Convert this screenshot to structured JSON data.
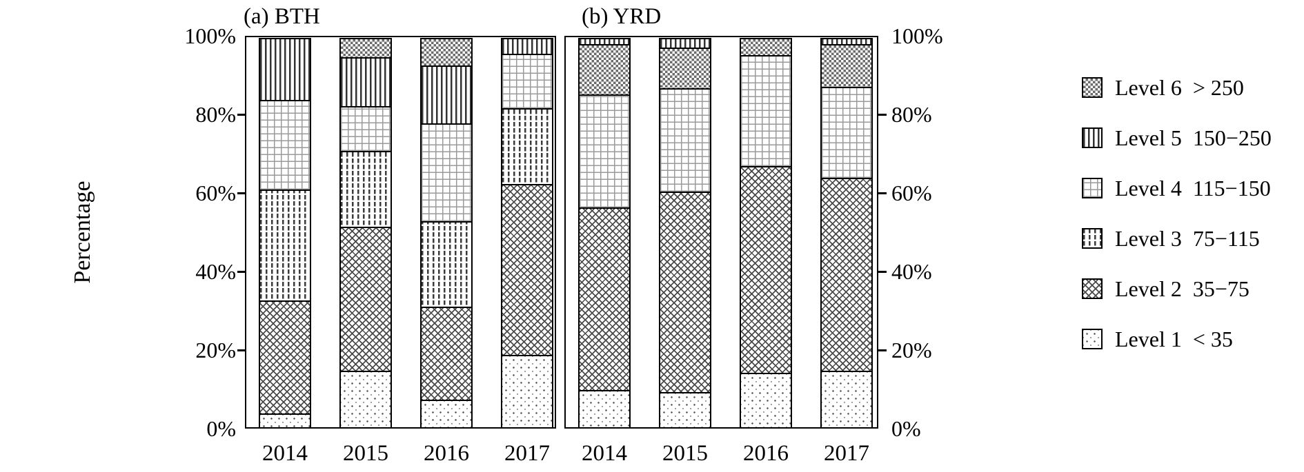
{
  "chart_data": {
    "type": "bar",
    "stacked": true,
    "title_a": "(a) BTH",
    "title_b": "(b) YRD",
    "ylabel": "Percentage",
    "ylim": [
      0,
      100
    ],
    "unit": "%",
    "grid": false,
    "legend_position": "right",
    "yticks": [
      "100%",
      "80%",
      "60%",
      "40%",
      "20%",
      "0%"
    ],
    "panels": [
      {
        "key": "a",
        "title": "(a) BTH",
        "categories": [
          "2014",
          "2015",
          "2016",
          "2017"
        ],
        "bars": [
          {
            "year": "2014",
            "segments": [
              {
                "level": "level1",
                "pct": 3.5
              },
              {
                "level": "level2",
                "pct": 29
              },
              {
                "level": "level3",
                "pct": 28.5
              },
              {
                "level": "level4",
                "pct": 23
              },
              {
                "level": "level5",
                "pct": 16
              }
            ]
          },
          {
            "year": "2015",
            "segments": [
              {
                "level": "level1",
                "pct": 14.5
              },
              {
                "level": "level2",
                "pct": 37
              },
              {
                "level": "level3",
                "pct": 19.5
              },
              {
                "level": "level4",
                "pct": 11.5
              },
              {
                "level": "level5",
                "pct": 12.5
              },
              {
                "level": "level6",
                "pct": 5
              }
            ]
          },
          {
            "year": "2016",
            "segments": [
              {
                "level": "level1",
                "pct": 7
              },
              {
                "level": "level2",
                "pct": 24
              },
              {
                "level": "level3",
                "pct": 22
              },
              {
                "level": "level4",
                "pct": 25
              },
              {
                "level": "level5",
                "pct": 15
              },
              {
                "level": "level6",
                "pct": 7
              }
            ]
          },
          {
            "year": "2017",
            "segments": [
              {
                "level": "level1",
                "pct": 18.5
              },
              {
                "level": "level2",
                "pct": 44
              },
              {
                "level": "level3",
                "pct": 19.5
              },
              {
                "level": "level4",
                "pct": 14
              },
              {
                "level": "level5",
                "pct": 4
              }
            ]
          }
        ]
      },
      {
        "key": "b",
        "title": "(b) YRD",
        "categories": [
          "2014",
          "2015",
          "2016",
          "2017"
        ],
        "bars": [
          {
            "year": "2014",
            "segments": [
              {
                "level": "level1",
                "pct": 9.5
              },
              {
                "level": "level2",
                "pct": 47
              },
              {
                "level": "level4",
                "pct": 29
              },
              {
                "level": "level6",
                "pct": 13
              },
              {
                "level": "level5",
                "pct": 1.5
              }
            ]
          },
          {
            "year": "2015",
            "segments": [
              {
                "level": "level1",
                "pct": 9
              },
              {
                "level": "level2",
                "pct": 51.5
              },
              {
                "level": "level4",
                "pct": 26.5
              },
              {
                "level": "level6",
                "pct": 10.5
              },
              {
                "level": "level5",
                "pct": 2.5
              }
            ]
          },
          {
            "year": "2016",
            "segments": [
              {
                "level": "level1",
                "pct": 14
              },
              {
                "level": "level2",
                "pct": 53
              },
              {
                "level": "level4",
                "pct": 28.5
              },
              {
                "level": "level6",
                "pct": 4.5
              }
            ]
          },
          {
            "year": "2017",
            "segments": [
              {
                "level": "level1",
                "pct": 14.5
              },
              {
                "level": "level2",
                "pct": 49.5
              },
              {
                "level": "level4",
                "pct": 23.5
              },
              {
                "level": "level6",
                "pct": 11
              },
              {
                "level": "level5",
                "pct": 1.5
              }
            ]
          }
        ]
      }
    ],
    "legend": [
      {
        "level": "level6",
        "label": "Level 6",
        "range": "> 250",
        "pattern": "checkerboard-weave"
      },
      {
        "level": "level5",
        "label": "Level 5",
        "range": "150−250",
        "pattern": "vertical-stripes"
      },
      {
        "level": "level4",
        "label": "Level 4",
        "range": "115−150",
        "pattern": "dotted-grid"
      },
      {
        "level": "level3",
        "label": "Level 3",
        "range": "75−115",
        "pattern": "sparse-dense-dots"
      },
      {
        "level": "level2",
        "label": "Level 2",
        "range": "35−75",
        "pattern": "diagonal-crosshatch"
      },
      {
        "level": "level1",
        "label": "Level 1",
        "range": "< 35",
        "pattern": "light-dots"
      }
    ],
    "ink_color": "#000000",
    "background_color": "#ffffff"
  }
}
